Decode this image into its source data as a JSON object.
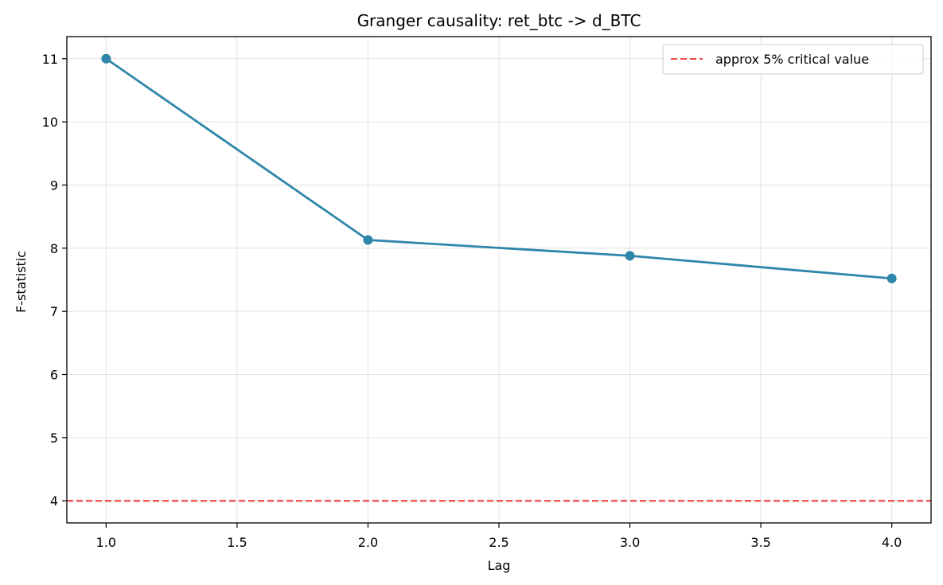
{
  "chart_data": {
    "type": "line",
    "title": "Granger causality: ret_btc -> d_BTC",
    "xlabel": "Lag",
    "ylabel": "F-statistic",
    "xlim": [
      0.85,
      4.15
    ],
    "ylim": [
      3.65,
      11.35
    ],
    "x_ticks": [
      1.0,
      1.5,
      2.0,
      2.5,
      3.0,
      3.5,
      4.0
    ],
    "x_tick_labels": [
      "1.0",
      "1.5",
      "2.0",
      "2.5",
      "3.0",
      "3.5",
      "4.0"
    ],
    "y_ticks": [
      4,
      5,
      6,
      7,
      8,
      9,
      10,
      11
    ],
    "y_tick_labels": [
      "4",
      "5",
      "6",
      "7",
      "8",
      "9",
      "10",
      "11"
    ],
    "grid": true,
    "series": [
      {
        "x": [
          1,
          2,
          3,
          4
        ],
        "y": [
          11.0,
          8.13,
          7.88,
          7.52
        ],
        "color": "#2e86ab",
        "marker": "circle"
      }
    ],
    "reference_lines": [
      {
        "orientation": "horizontal",
        "y": 4.0,
        "color": "#f24a4a",
        "style": "dashed",
        "name": "approx 5% critical value"
      }
    ],
    "legend": {
      "placement": "top-right",
      "entries": [
        "approx 5% critical value"
      ]
    }
  }
}
